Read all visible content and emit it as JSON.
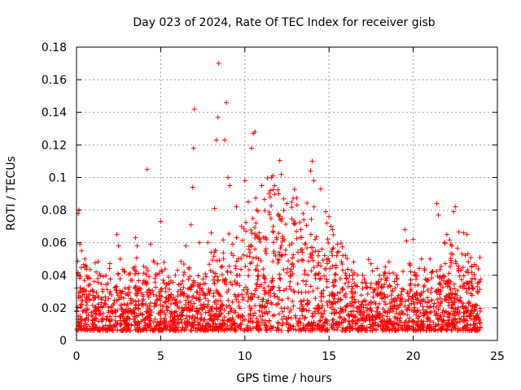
{
  "chart_data": {
    "type": "scatter",
    "title": "Day 023 of 2024, Rate Of TEC Index for receiver gisb",
    "xlabel": "GPS time / hours",
    "ylabel": "ROTI / TECUs",
    "xlim": [
      0,
      25
    ],
    "ylim": [
      0,
      0.18
    ],
    "xticks": [
      0,
      5,
      10,
      15,
      20,
      25
    ],
    "xtick_labels": [
      "0",
      "5",
      "10",
      "15",
      "20",
      "25"
    ],
    "yticks": [
      0,
      0.02,
      0.04,
      0.06,
      0.08,
      0.1,
      0.12,
      0.14,
      0.16,
      0.18
    ],
    "ytick_labels": [
      "0",
      "0.02",
      "0.04",
      "0.06",
      "0.08",
      "0.1",
      "0.12",
      "0.14",
      "0.16",
      "0.18"
    ],
    "grid": true,
    "marker": "+",
    "color": "#ff0000",
    "series": [
      {
        "name": "ROTI",
        "points": [
          [
            0.1,
            0.078
          ],
          [
            0.15,
            0.08
          ],
          [
            0.2,
            0.059
          ],
          [
            0.3,
            0.055
          ],
          [
            0.5,
            0.05
          ],
          [
            0.6,
            0.045
          ],
          [
            0.8,
            0.038
          ],
          [
            1.0,
            0.03
          ],
          [
            1.5,
            0.026
          ],
          [
            2.0,
            0.03
          ],
          [
            2.4,
            0.065
          ],
          [
            2.5,
            0.058
          ],
          [
            2.6,
            0.05
          ],
          [
            3.5,
            0.063
          ],
          [
            3.6,
            0.058
          ],
          [
            4.2,
            0.105
          ],
          [
            4.4,
            0.059
          ],
          [
            4.6,
            0.048
          ],
          [
            4.8,
            0.047
          ],
          [
            5.0,
            0.073
          ],
          [
            5.2,
            0.048
          ],
          [
            5.5,
            0.035
          ],
          [
            6.0,
            0.043
          ],
          [
            6.5,
            0.058
          ],
          [
            6.8,
            0.071
          ],
          [
            6.9,
            0.094
          ],
          [
            6.95,
            0.118
          ],
          [
            7.0,
            0.142
          ],
          [
            7.3,
            0.06
          ],
          [
            7.8,
            0.06
          ],
          [
            8.0,
            0.066
          ],
          [
            8.2,
            0.081
          ],
          [
            8.3,
            0.123
          ],
          [
            8.4,
            0.137
          ],
          [
            8.45,
            0.17
          ],
          [
            8.8,
            0.123
          ],
          [
            8.9,
            0.146
          ],
          [
            9.0,
            0.1
          ],
          [
            9.1,
            0.095
          ],
          [
            9.5,
            0.082
          ],
          [
            9.8,
            0.07
          ],
          [
            10.0,
            0.098
          ],
          [
            10.2,
            0.085
          ],
          [
            10.4,
            0.118
          ],
          [
            10.5,
            0.127
          ],
          [
            10.6,
            0.128
          ],
          [
            10.7,
            0.08
          ],
          [
            11.0,
            0.095
          ],
          [
            11.5,
            0.088
          ],
          [
            12.0,
            0.09
          ],
          [
            12.5,
            0.084
          ],
          [
            13.0,
            0.072
          ],
          [
            13.5,
            0.074
          ],
          [
            13.9,
            0.104
          ],
          [
            14.0,
            0.11
          ],
          [
            14.1,
            0.098
          ],
          [
            14.5,
            0.093
          ],
          [
            14.8,
            0.079
          ],
          [
            15.0,
            0.076
          ],
          [
            15.2,
            0.068
          ],
          [
            15.5,
            0.054
          ],
          [
            16.0,
            0.04
          ],
          [
            16.5,
            0.035
          ],
          [
            17.0,
            0.04
          ],
          [
            17.5,
            0.035
          ],
          [
            18.0,
            0.04
          ],
          [
            18.5,
            0.033
          ],
          [
            19.0,
            0.04
          ],
          [
            19.5,
            0.068
          ],
          [
            19.6,
            0.061
          ],
          [
            20.0,
            0.062
          ],
          [
            20.5,
            0.05
          ],
          [
            21.0,
            0.05
          ],
          [
            21.4,
            0.084
          ],
          [
            21.5,
            0.077
          ],
          [
            22.0,
            0.065
          ],
          [
            22.3,
            0.058
          ],
          [
            22.4,
            0.079
          ],
          [
            22.5,
            0.082
          ],
          [
            22.9,
            0.053
          ],
          [
            23.0,
            0.066
          ],
          [
            23.2,
            0.065
          ],
          [
            23.5,
            0.038
          ],
          [
            23.8,
            0.033
          ]
        ]
      }
    ]
  }
}
